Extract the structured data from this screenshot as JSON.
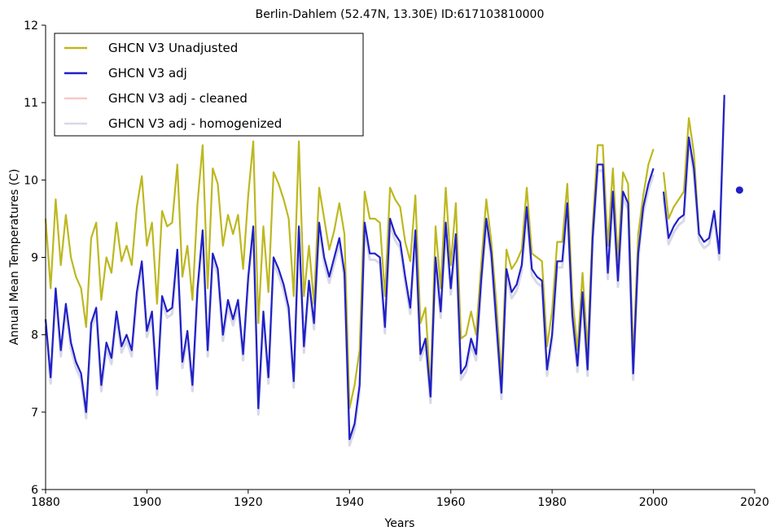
{
  "chart_data": {
    "type": "line",
    "title": "Berlin-Dahlem (52.47N, 13.30E) ID:617103810000",
    "xlabel": "Years",
    "ylabel": "Annual Mean Temperatures (C)",
    "xlim": [
      1880,
      2020
    ],
    "ylim": [
      6,
      12
    ],
    "xticks": [
      1880,
      1900,
      1920,
      1940,
      1960,
      1980,
      2000,
      2020
    ],
    "yticks": [
      6,
      7,
      8,
      9,
      10,
      11,
      12
    ],
    "grid": false,
    "legend_position": "top-left",
    "series": [
      {
        "name": "GHCN V3 Unadjusted",
        "color": "#bdb820",
        "style": "line",
        "segments": [
          {
            "x": [
              1880,
              1881,
              1882,
              1883,
              1884,
              1885,
              1886,
              1887,
              1888,
              1889,
              1890,
              1891,
              1892,
              1893,
              1894,
              1895,
              1896,
              1897,
              1898,
              1899,
              1900,
              1901,
              1902,
              1903,
              1904,
              1905,
              1906,
              1907,
              1908,
              1909,
              1910,
              1911,
              1912,
              1913,
              1914,
              1915,
              1916,
              1917,
              1918,
              1919,
              1920,
              1921,
              1922,
              1923,
              1924,
              1925,
              1926,
              1927,
              1928,
              1929,
              1930,
              1931,
              1932,
              1933,
              1934,
              1935,
              1936,
              1937,
              1938,
              1939,
              1940,
              1941,
              1942,
              1943,
              1944,
              1945,
              1946,
              1947,
              1948,
              1949,
              1950,
              1951,
              1952,
              1953,
              1954,
              1955,
              1956,
              1957,
              1958,
              1959,
              1960,
              1961,
              1962,
              1963,
              1964,
              1965,
              1966,
              1967,
              1968,
              1969,
              1970,
              1971,
              1972,
              1973,
              1974,
              1975,
              1976,
              1977,
              1978,
              1979,
              1980,
              1981,
              1982,
              1983,
              1984,
              1985,
              1986,
              1987,
              1988,
              1989,
              1990,
              1991,
              1992,
              1993,
              1994,
              1995,
              1996,
              1997,
              1998,
              1999,
              2000
            ],
            "y": [
              9.5,
              8.6,
              9.75,
              8.9,
              9.55,
              9.0,
              8.75,
              8.6,
              8.1,
              9.25,
              9.45,
              8.45,
              9.0,
              8.8,
              9.45,
              8.95,
              9.15,
              8.9,
              9.65,
              10.05,
              9.15,
              9.45,
              8.4,
              9.6,
              9.4,
              9.45,
              10.2,
              8.75,
              9.15,
              8.45,
              9.7,
              10.45,
              8.6,
              10.15,
              9.95,
              9.15,
              9.55,
              9.3,
              9.55,
              8.85,
              9.8,
              10.5,
              8.15,
              9.4,
              8.55,
              10.1,
              9.95,
              9.75,
              9.5,
              8.5,
              10.5,
              8.5,
              9.15,
              8.4,
              9.9,
              9.5,
              9.1,
              9.35,
              9.7,
              9.3,
              7.05,
              7.35,
              7.8,
              9.85,
              9.5,
              9.5,
              9.45,
              8.5,
              9.9,
              9.75,
              9.65,
              9.2,
              8.95,
              9.8,
              8.15,
              8.35,
              7.3,
              9.4,
              8.6,
              9.9,
              8.9,
              9.7,
              7.95,
              8.0,
              8.3,
              8.0,
              8.9,
              9.75,
              9.2,
              8.4,
              7.45,
              9.1,
              8.85,
              8.95,
              9.1,
              9.9,
              9.05,
              9.0,
              8.95,
              7.85,
              8.3,
              9.2,
              9.2,
              9.95,
              8.5,
              7.8,
              8.8,
              7.8,
              9.4,
              10.45,
              10.45,
              9.15,
              10.15,
              8.95,
              10.1,
              9.95,
              7.65,
              9.3,
              9.8,
              10.2,
              10.4
            ]
          },
          {
            "x": [
              2002,
              2003,
              2004,
              2005,
              2006,
              2007,
              2008,
              2009,
              2010
            ],
            "y": [
              10.1,
              9.5,
              9.65,
              9.75,
              9.85,
              10.8,
              10.35,
              9.3,
              9.2
            ]
          }
        ]
      },
      {
        "name": "GHCN V3 adj",
        "color": "#2020c8",
        "style": "line",
        "segments": [
          {
            "x": [
              1880,
              1881,
              1882,
              1883,
              1884,
              1885,
              1886,
              1887,
              1888,
              1889,
              1890,
              1891,
              1892,
              1893,
              1894,
              1895,
              1896,
              1897,
              1898,
              1899,
              1900,
              1901,
              1902,
              1903,
              1904,
              1905,
              1906,
              1907,
              1908,
              1909,
              1910,
              1911,
              1912,
              1913,
              1914,
              1915,
              1916,
              1917,
              1918,
              1919,
              1920,
              1921,
              1922,
              1923,
              1924,
              1925,
              1926,
              1927,
              1928,
              1929,
              1930,
              1931,
              1932,
              1933,
              1934,
              1935,
              1936,
              1937,
              1938,
              1939,
              1940,
              1941,
              1942,
              1943,
              1944,
              1945,
              1946,
              1947,
              1948,
              1949,
              1950,
              1951,
              1952,
              1953,
              1954,
              1955,
              1956,
              1957,
              1958,
              1959,
              1960,
              1961,
              1962,
              1963,
              1964,
              1965,
              1966,
              1967,
              1968,
              1969,
              1970,
              1971,
              1972,
              1973,
              1974,
              1975,
              1976,
              1977,
              1978,
              1979,
              1980,
              1981,
              1982,
              1983,
              1984,
              1985,
              1986,
              1987,
              1988,
              1989,
              1990,
              1991,
              1992,
              1993,
              1994,
              1995,
              1996,
              1997,
              1998,
              1999,
              2000
            ],
            "y": [
              8.2,
              7.45,
              8.6,
              7.8,
              8.4,
              7.9,
              7.65,
              7.5,
              7.0,
              8.15,
              8.35,
              7.35,
              7.9,
              7.7,
              8.3,
              7.85,
              8.0,
              7.8,
              8.55,
              8.95,
              8.05,
              8.3,
              7.3,
              8.5,
              8.3,
              8.35,
              9.1,
              7.65,
              8.05,
              7.35,
              8.6,
              9.35,
              7.8,
              9.05,
              8.85,
              8.0,
              8.45,
              8.2,
              8.45,
              7.75,
              8.75,
              9.4,
              7.05,
              8.3,
              7.45,
              9.0,
              8.85,
              8.65,
              8.35,
              7.4,
              9.4,
              7.85,
              8.7,
              8.15,
              9.45,
              9.0,
              8.75,
              9.0,
              9.25,
              8.8,
              6.65,
              6.85,
              7.35,
              9.45,
              9.05,
              9.05,
              9.0,
              8.1,
              9.5,
              9.3,
              9.2,
              8.75,
              8.35,
              9.35,
              7.75,
              7.95,
              7.2,
              9.0,
              8.3,
              9.45,
              8.6,
              9.3,
              7.5,
              7.6,
              7.95,
              7.75,
              8.7,
              9.5,
              9.05,
              8.15,
              7.25,
              8.85,
              8.55,
              8.65,
              8.9,
              9.65,
              8.85,
              8.75,
              8.7,
              7.55,
              8.0,
              8.95,
              8.95,
              9.7,
              8.25,
              7.6,
              8.55,
              7.55,
              9.25,
              10.2,
              10.2,
              8.8,
              9.85,
              8.7,
              9.85,
              9.7,
              7.5,
              9.05,
              9.65,
              9.95,
              10.15
            ]
          },
          {
            "x": [
              2002,
              2003,
              2004,
              2005,
              2006,
              2007,
              2008,
              2009,
              2010,
              2011,
              2012,
              2013,
              2014
            ],
            "y": [
              9.85,
              9.25,
              9.4,
              9.5,
              9.55,
              10.55,
              10.15,
              9.3,
              9.2,
              9.25,
              9.6,
              9.05,
              11.1
            ]
          },
          {
            "x": [
              2017
            ],
            "y": [
              9.87
            ],
            "marker": "dot"
          }
        ]
      },
      {
        "name": "GHCN V3 adj - cleaned",
        "color": "#f5c9c9",
        "style": "line",
        "segments": []
      },
      {
        "name": "GHCN V3 adj - homogenized",
        "color": "#d8d8e8",
        "style": "line",
        "offset_from": "GHCN V3 adj",
        "offset": -0.08
      }
    ]
  }
}
